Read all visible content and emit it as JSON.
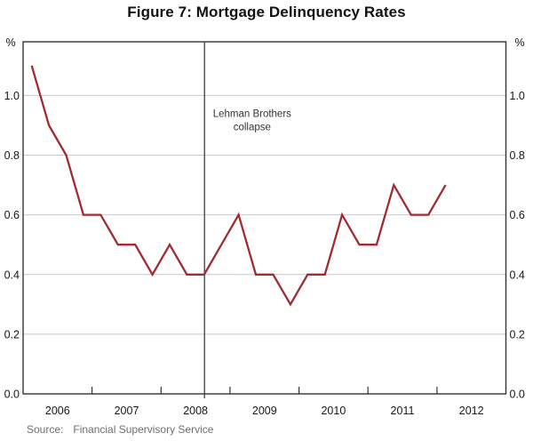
{
  "figure": {
    "title": "Figure 7: Mortgage Delinquency Rates",
    "source_label": "Source:",
    "source_text": "Financial Supervisory Service"
  },
  "colors": {
    "line": "#A02C31",
    "grid": "#C9C9C9",
    "axis": "#333333",
    "event_line": "#3F3F3F",
    "tick_text": "#16161C",
    "annotation_text": "#33333B",
    "title_text": "#121212",
    "source_text": "#6F6F6F",
    "background": "#FFFFFF"
  },
  "chart_data": {
    "type": "line",
    "title": "Figure 7: Mortgage Delinquency Rates",
    "unit": "%",
    "unit_right": "%",
    "x_unit": "quarter",
    "quarters": [
      "2006Q1",
      "2006Q2",
      "2006Q3",
      "2006Q4",
      "2007Q1",
      "2007Q2",
      "2007Q3",
      "2007Q4",
      "2008Q1",
      "2008Q2",
      "2008Q3",
      "2008Q4",
      "2009Q1",
      "2009Q2",
      "2009Q3",
      "2009Q4",
      "2010Q1",
      "2010Q2",
      "2010Q3",
      "2010Q4",
      "2011Q1",
      "2011Q2",
      "2011Q3",
      "2011Q4",
      "2012Q1"
    ],
    "values": [
      1.1,
      0.9,
      0.8,
      0.6,
      0.6,
      0.5,
      0.5,
      0.4,
      0.5,
      0.4,
      0.4,
      0.5,
      0.6,
      0.4,
      0.4,
      0.3,
      0.4,
      0.4,
      0.6,
      0.5,
      0.5,
      0.7,
      0.6,
      0.6,
      0.7
    ],
    "x_axis": {
      "min": 2006,
      "max": 2013,
      "tick_years": [
        2007,
        2008,
        2009,
        2010,
        2011,
        2012
      ],
      "year_labels": [
        "2006",
        "2007",
        "2008",
        "2009",
        "2010",
        "2011",
        "2012"
      ]
    },
    "y_axis": {
      "min": 0,
      "max": 1.18,
      "ticks": [
        0.0,
        0.2,
        0.4,
        0.6,
        0.8,
        1.0
      ],
      "tick_labels": [
        "0.0",
        "0.2",
        "0.4",
        "0.6",
        "0.8",
        "1.0"
      ]
    },
    "grid": "horizontal",
    "legend": "none",
    "annotation": {
      "lines": [
        "Lehman Brothers",
        "collapse"
      ],
      "x_year": 2008.63,
      "label_x_year": 2009.32,
      "label_y_values": [
        0.928,
        0.884
      ]
    }
  }
}
